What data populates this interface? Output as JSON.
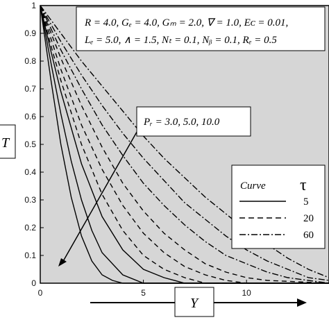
{
  "chart_data": {
    "type": "line",
    "xlabel": "Y",
    "ylabel": "T",
    "xlim": [
      0,
      14
    ],
    "ylim": [
      0,
      1
    ],
    "x_ticks": [
      "0",
      "5",
      "10"
    ],
    "y_ticks": [
      "0",
      "0.1",
      "0.2",
      "0.3",
      "0.4",
      "0.5",
      "0.6",
      "0.7",
      "0.8",
      "0.9",
      "1"
    ],
    "grid": false,
    "background": "#d6d6d6",
    "parameters_box": {
      "line1": "R = 4.0, Gₑ = 4.0, Gₘ = 2.0, ∇ = 1.0, Eᴄ = 0.01,",
      "line2": "Lₑ = 5.0, ∧ = 1.5, Nₜ = 0.1, Nᵦ = 0.1, Rₑ = 0.5"
    },
    "annotation": "Pᵣ = 3.0, 5.0, 10.0",
    "legend": {
      "title": "Curve",
      "tau_label": "τ",
      "placement": "right",
      "entries": [
        {
          "style": "solid",
          "tau": "5"
        },
        {
          "style": "dashed",
          "tau": "20"
        },
        {
          "style": "dashdot",
          "tau": "60"
        }
      ]
    },
    "series": [
      {
        "style": "solid",
        "x": [
          0,
          0.5,
          1,
          1.5,
          2,
          2.5,
          3,
          3.5,
          4,
          5,
          14
        ],
        "values": [
          1,
          0.74,
          0.5,
          0.31,
          0.17,
          0.08,
          0.03,
          0.01,
          0.0,
          0.0,
          0.0
        ]
      },
      {
        "style": "solid",
        "x": [
          0,
          0.5,
          1,
          1.5,
          2,
          2.5,
          3,
          4,
          5,
          6,
          14
        ],
        "values": [
          1,
          0.8,
          0.61,
          0.44,
          0.3,
          0.19,
          0.11,
          0.03,
          0.0,
          0.0,
          0.0
        ]
      },
      {
        "style": "solid",
        "x": [
          0,
          0.5,
          1,
          2,
          3,
          4,
          5,
          6,
          7,
          14
        ],
        "values": [
          1,
          0.84,
          0.69,
          0.43,
          0.24,
          0.12,
          0.05,
          0.02,
          0.0,
          0.0
        ]
      },
      {
        "style": "dashed",
        "x": [
          0,
          0.5,
          1,
          2,
          3,
          4,
          5,
          6,
          7,
          8,
          14
        ],
        "values": [
          1,
          0.86,
          0.73,
          0.5,
          0.32,
          0.19,
          0.1,
          0.05,
          0.02,
          0.0,
          0.0
        ]
      },
      {
        "style": "dashed",
        "x": [
          0,
          1,
          2,
          3,
          4,
          5,
          6,
          7,
          8,
          9,
          10,
          14
        ],
        "values": [
          1,
          0.77,
          0.57,
          0.41,
          0.28,
          0.18,
          0.11,
          0.06,
          0.03,
          0.01,
          0.0,
          0.0
        ]
      },
      {
        "style": "dashed",
        "x": [
          0,
          1,
          2,
          3,
          4,
          5,
          6,
          7,
          8,
          9,
          10,
          11,
          14
        ],
        "values": [
          1,
          0.81,
          0.64,
          0.49,
          0.36,
          0.26,
          0.18,
          0.12,
          0.07,
          0.04,
          0.02,
          0.01,
          0.0
        ]
      },
      {
        "style": "dashdot",
        "x": [
          0,
          1,
          2,
          3,
          4,
          5,
          6,
          7,
          8,
          9,
          10,
          11,
          12,
          13,
          14
        ],
        "values": [
          1,
          0.84,
          0.7,
          0.57,
          0.46,
          0.36,
          0.28,
          0.21,
          0.15,
          0.1,
          0.07,
          0.04,
          0.02,
          0.01,
          0.0
        ]
      },
      {
        "style": "dashdot",
        "x": [
          0,
          1,
          2,
          3,
          4,
          5,
          6,
          7,
          8,
          9,
          10,
          11,
          12,
          13,
          14
        ],
        "values": [
          1,
          0.87,
          0.75,
          0.64,
          0.54,
          0.45,
          0.37,
          0.29,
          0.23,
          0.17,
          0.12,
          0.08,
          0.05,
          0.02,
          0.01
        ]
      },
      {
        "style": "dashdot",
        "x": [
          0,
          1,
          2,
          3,
          4,
          5,
          6,
          7,
          8,
          9,
          10,
          11,
          12,
          13,
          14
        ],
        "values": [
          1,
          0.9,
          0.8,
          0.71,
          0.62,
          0.53,
          0.45,
          0.38,
          0.31,
          0.25,
          0.19,
          0.14,
          0.09,
          0.05,
          0.02
        ]
      }
    ]
  }
}
